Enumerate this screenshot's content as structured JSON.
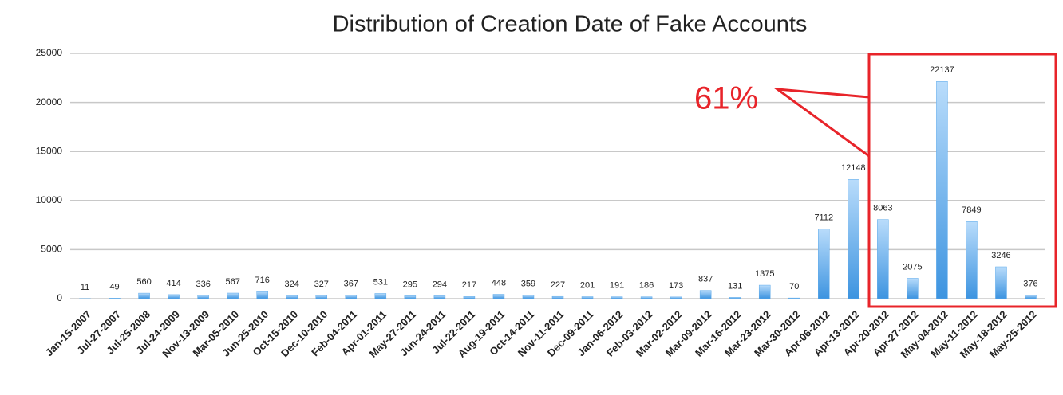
{
  "chart_data": {
    "type": "bar",
    "title": "Distribution of Creation Date of Fake Accounts",
    "categories": [
      "Jan-15-2007",
      "Jul-27-2007",
      "Jul-25-2008",
      "Jul-24-2009",
      "Nov-13-2009",
      "Mar-05-2010",
      "Jun-25-2010",
      "Oct-15-2010",
      "Dec-10-2010",
      "Feb-04-2011",
      "Apr-01-2011",
      "May-27-2011",
      "Jun-24-2011",
      "Jul-22-2011",
      "Aug-19-2011",
      "Oct-14-2011",
      "Nov-11-2011",
      "Dec-09-2011",
      "Jan-06-2012",
      "Feb-03-2012",
      "Mar-02-2012",
      "Mar-09-2012",
      "Mar-16-2012",
      "Mar-23-2012",
      "Mar-30-2012",
      "Apr-06-2012",
      "Apr-13-2012",
      "Apr-20-2012",
      "Apr-27-2012",
      "May-04-2012",
      "May-11-2012",
      "May-18-2012",
      "May-25-2012"
    ],
    "values": [
      11,
      49,
      560,
      414,
      336,
      567,
      716,
      324,
      327,
      367,
      531,
      295,
      294,
      217,
      448,
      359,
      227,
      201,
      191,
      186,
      173,
      837,
      131,
      1375,
      70,
      7112,
      12148,
      8063,
      2075,
      22137,
      7849,
      3246,
      376
    ],
    "color": "#5aa8ea",
    "ylim": [
      0,
      25000
    ],
    "yticks": [
      0,
      5000,
      10000,
      15000,
      20000,
      25000
    ],
    "grid": true,
    "annotation": "61%",
    "annotation_color": "#e8242a"
  }
}
